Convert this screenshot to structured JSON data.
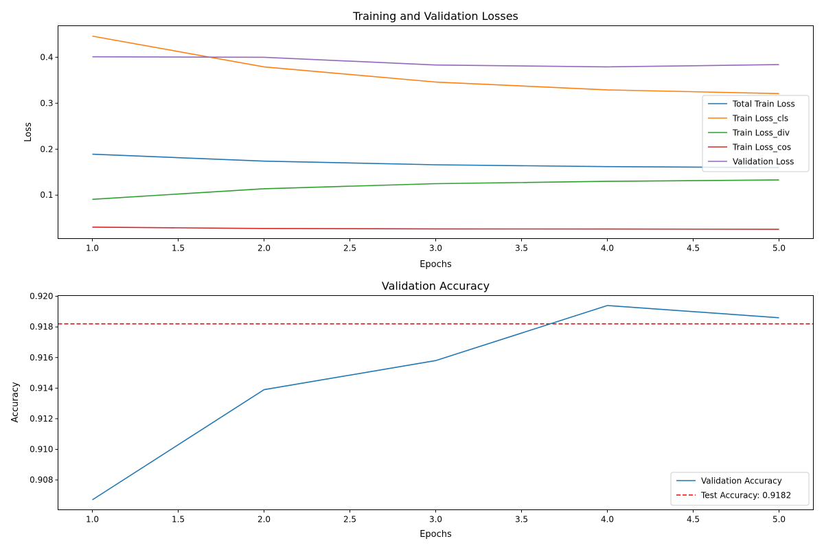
{
  "chart_data": [
    {
      "type": "line",
      "title": "Training and Validation Losses",
      "xlabel": "Epochs",
      "ylabel": "Loss",
      "xlim": [
        0.8,
        5.2
      ],
      "ylim": [
        0.0055,
        0.4685
      ],
      "x": [
        1,
        2,
        3,
        4,
        5
      ],
      "xticks": [
        {
          "value": 1.0,
          "label": "1.0"
        },
        {
          "value": 1.5,
          "label": "1.5"
        },
        {
          "value": 2.0,
          "label": "2.0"
        },
        {
          "value": 2.5,
          "label": "2.5"
        },
        {
          "value": 3.0,
          "label": "3.0"
        },
        {
          "value": 3.5,
          "label": "3.5"
        },
        {
          "value": 4.0,
          "label": "4.0"
        },
        {
          "value": 4.5,
          "label": "4.5"
        },
        {
          "value": 5.0,
          "label": "5.0"
        }
      ],
      "yticks": [
        {
          "value": 0.1,
          "label": "0.1"
        },
        {
          "value": 0.2,
          "label": "0.2"
        },
        {
          "value": 0.3,
          "label": "0.3"
        },
        {
          "value": 0.4,
          "label": "0.4"
        }
      ],
      "grid": false,
      "legend_position": "center-right",
      "series": [
        {
          "name": "Total Train Loss",
          "color": "#1f77b4",
          "style": "solid",
          "values": [
            0.189,
            0.174,
            0.166,
            0.162,
            0.16
          ]
        },
        {
          "name": "Train Loss_cls",
          "color": "#ff7f0e",
          "style": "solid",
          "values": [
            0.446,
            0.379,
            0.346,
            0.329,
            0.321
          ]
        },
        {
          "name": "Train Loss_div",
          "color": "#2ca02c",
          "style": "solid",
          "values": [
            0.091,
            0.114,
            0.125,
            0.13,
            0.133
          ]
        },
        {
          "name": "Train Loss_cos",
          "color": "#d62728",
          "style": "solid",
          "values": [
            0.0305,
            0.0275,
            0.0265,
            0.0262,
            0.0258
          ]
        },
        {
          "name": "Validation Loss",
          "color": "#9467bd",
          "style": "solid",
          "values": [
            0.401,
            0.4,
            0.383,
            0.379,
            0.384
          ]
        }
      ]
    },
    {
      "type": "line",
      "title": "Validation Accuracy",
      "xlabel": "Epochs",
      "ylabel": "Accuracy",
      "xlim": [
        0.8,
        5.2
      ],
      "ylim": [
        0.90605,
        0.92005
      ],
      "x": [
        1,
        2,
        3,
        4,
        5
      ],
      "xticks": [
        {
          "value": 1.0,
          "label": "1.0"
        },
        {
          "value": 1.5,
          "label": "1.5"
        },
        {
          "value": 2.0,
          "label": "2.0"
        },
        {
          "value": 2.5,
          "label": "2.5"
        },
        {
          "value": 3.0,
          "label": "3.0"
        },
        {
          "value": 3.5,
          "label": "3.5"
        },
        {
          "value": 4.0,
          "label": "4.0"
        },
        {
          "value": 4.5,
          "label": "4.5"
        },
        {
          "value": 5.0,
          "label": "5.0"
        }
      ],
      "yticks": [
        {
          "value": 0.908,
          "label": "0.908"
        },
        {
          "value": 0.91,
          "label": "0.910"
        },
        {
          "value": 0.912,
          "label": "0.912"
        },
        {
          "value": 0.914,
          "label": "0.914"
        },
        {
          "value": 0.916,
          "label": "0.916"
        },
        {
          "value": 0.918,
          "label": "0.918"
        },
        {
          "value": 0.92,
          "label": "0.920"
        }
      ],
      "grid": false,
      "legend_position": "bottom-right",
      "series": [
        {
          "name": "Validation Accuracy",
          "color": "#1f77b4",
          "style": "solid",
          "values": [
            0.9067,
            0.9139,
            0.9158,
            0.9194,
            0.9186
          ]
        }
      ],
      "hlines": [
        {
          "name": "Test Accuracy: 0.9182",
          "color": "#ff0000",
          "style": "dashed",
          "value": 0.9182
        }
      ]
    }
  ]
}
